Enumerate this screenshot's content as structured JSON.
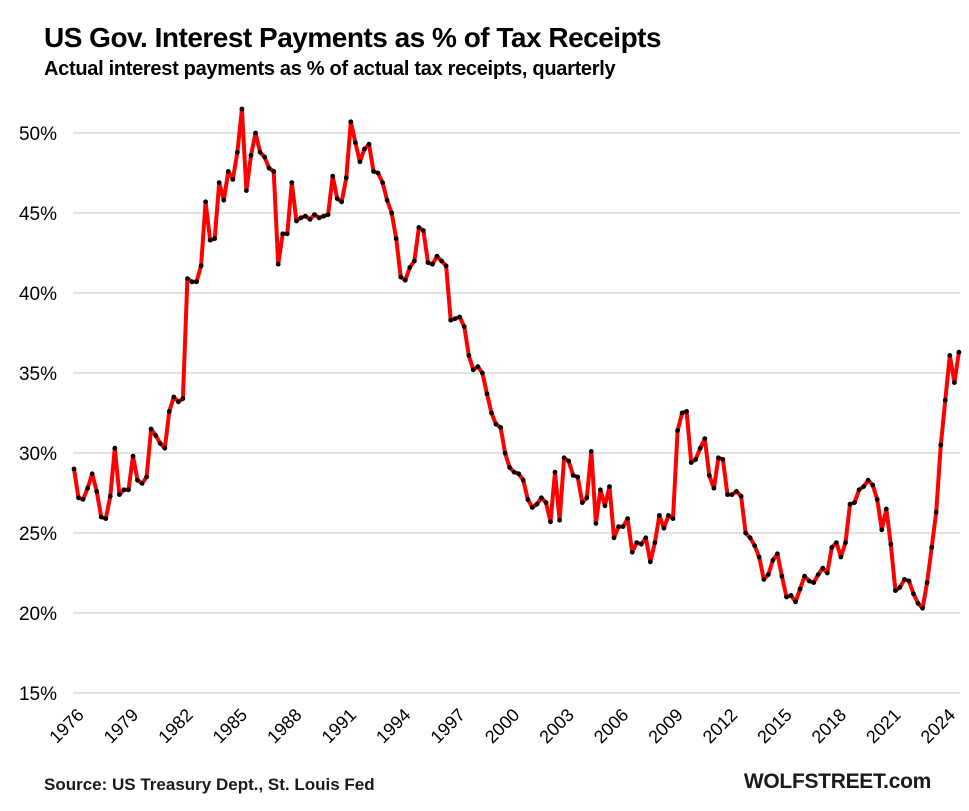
{
  "header": {
    "title": "US Gov. Interest Payments as % of Tax Receipts",
    "subtitle": "Actual interest payments as % of actual tax receipts, quarterly"
  },
  "footer": {
    "source": "Source: US Treasury Dept., St. Louis Fed",
    "brand": "WOLFSTREET.com"
  },
  "chart_data": {
    "type": "line",
    "title": "US Gov. Interest Payments as % of Tax Receipts",
    "subtitle": "Actual interest payments as % of actual tax receipts, quarterly",
    "series_name": "Interest payments as % of tax receipts",
    "frequency": "quarterly",
    "x_start_year": 1976,
    "x_end_year": 2024,
    "x_tick_years": [
      1976,
      1979,
      1982,
      1985,
      1988,
      1991,
      1994,
      1997,
      2000,
      2003,
      2006,
      2009,
      2012,
      2015,
      2018,
      2021,
      2024
    ],
    "y_tick_labels": [
      "50%",
      "45%",
      "40%",
      "35%",
      "30%",
      "25%",
      "20%",
      "15%"
    ],
    "y_tick_values": [
      50,
      45,
      40,
      35,
      30,
      25,
      20,
      15
    ],
    "ylim": [
      15,
      52
    ],
    "grid": "horizontal-only",
    "legend": "none",
    "line_color": "#ff0000",
    "marker_color": "#000000",
    "grid_color": "#d9d9d9",
    "text_color": "#000000",
    "values": [
      29.0,
      27.2,
      27.1,
      27.8,
      28.7,
      27.6,
      26.0,
      25.9,
      27.3,
      30.3,
      27.4,
      27.7,
      27.7,
      29.8,
      28.3,
      28.1,
      28.5,
      31.5,
      31.1,
      30.6,
      30.3,
      32.6,
      33.5,
      33.2,
      33.4,
      40.9,
      40.7,
      40.7,
      41.7,
      45.7,
      43.3,
      43.4,
      46.9,
      45.8,
      47.6,
      47.1,
      48.8,
      51.5,
      46.4,
      48.6,
      50.0,
      48.8,
      48.5,
      47.8,
      47.6,
      41.8,
      43.7,
      43.7,
      46.9,
      44.5,
      44.7,
      44.8,
      44.6,
      44.9,
      44.7,
      44.8,
      44.9,
      47.3,
      45.9,
      45.7,
      47.2,
      50.7,
      49.4,
      48.2,
      49.0,
      49.3,
      47.6,
      47.5,
      46.9,
      45.8,
      45.0,
      43.4,
      41.0,
      40.8,
      41.6,
      42.0,
      44.1,
      43.9,
      41.9,
      41.8,
      42.3,
      42.0,
      41.7,
      38.3,
      38.4,
      38.5,
      37.9,
      36.1,
      35.2,
      35.4,
      35.0,
      33.7,
      32.5,
      31.8,
      31.6,
      30.0,
      29.1,
      28.8,
      28.7,
      28.3,
      27.1,
      26.6,
      26.8,
      27.2,
      26.9,
      25.7,
      28.8,
      25.8,
      29.7,
      29.5,
      28.6,
      28.5,
      26.9,
      27.2,
      30.1,
      25.6,
      27.7,
      26.7,
      27.9,
      24.7,
      25.4,
      25.4,
      25.9,
      23.8,
      24.4,
      24.3,
      24.7,
      23.2,
      24.4,
      26.1,
      25.3,
      26.1,
      25.9,
      31.4,
      32.5,
      32.6,
      29.4,
      29.6,
      30.3,
      30.9,
      28.6,
      27.8,
      29.7,
      29.6,
      27.4,
      27.4,
      27.6,
      27.3,
      25.0,
      24.7,
      24.2,
      23.5,
      22.1,
      22.4,
      23.3,
      23.7,
      22.3,
      21.0,
      21.1,
      20.7,
      21.5,
      22.3,
      22.0,
      21.9,
      22.4,
      22.8,
      22.5,
      24.1,
      24.4,
      23.5,
      24.4,
      26.8,
      26.9,
      27.7,
      27.9,
      28.3,
      28.0,
      27.1,
      25.2,
      26.5,
      24.3,
      21.4,
      21.6,
      22.1,
      22.0,
      21.2,
      20.6,
      20.3,
      21.9,
      24.1,
      26.3,
      30.5,
      33.3,
      36.1,
      34.4,
      36.3
    ]
  }
}
